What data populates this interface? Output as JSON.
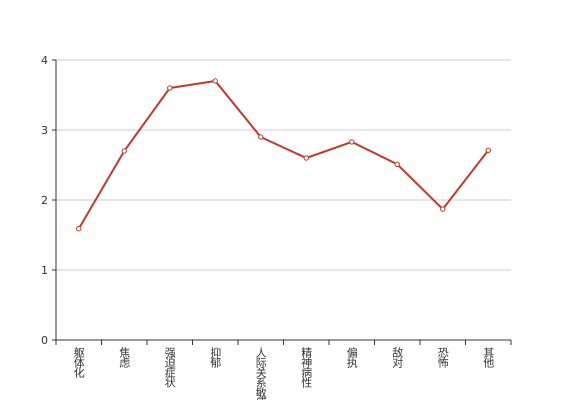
{
  "chart_data": {
    "type": "line",
    "categories": [
      "躯体化",
      "焦虑",
      "强迫症状",
      "抑郁",
      "人际关系敏感",
      "精神病性",
      "偏执",
      "敌对",
      "恐怖",
      "其他"
    ],
    "values": [
      1.59,
      2.7,
      3.6,
      3.7,
      2.9,
      2.6,
      2.83,
      2.51,
      1.87,
      2.71
    ],
    "color": "#c0392b",
    "ylim": [
      0,
      4
    ],
    "yticks": [
      0,
      1,
      2,
      3,
      4
    ],
    "grid": true
  }
}
